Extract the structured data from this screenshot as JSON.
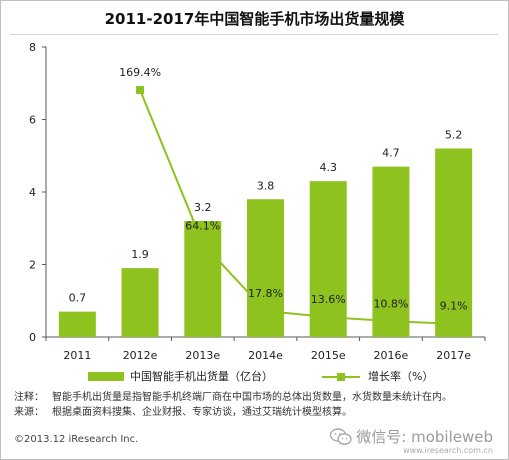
{
  "title": "2011-2017年中国智能手机市场出货量规模",
  "chart_data": {
    "type": "bar",
    "categories": [
      "2011",
      "2012e",
      "2013e",
      "2014e",
      "2015e",
      "2016e",
      "2017e"
    ],
    "series": [
      {
        "name": "中国智能手机出货量（亿台）",
        "type": "bar",
        "values": [
          0.7,
          1.9,
          3.2,
          3.8,
          4.3,
          4.7,
          5.2
        ],
        "labels": [
          "0.7",
          "1.9",
          "3.2",
          "3.8",
          "4.3",
          "4.7",
          "5.2"
        ],
        "color": "#8dc21f"
      },
      {
        "name": "增长率（%）",
        "type": "line",
        "values": [
          null,
          169.4,
          64.1,
          17.8,
          13.6,
          10.8,
          9.1
        ],
        "labels": [
          "",
          "169.4%",
          "64.1%",
          "17.8%",
          "13.6%",
          "10.8%",
          "9.1%"
        ],
        "color": "#8dc21f"
      }
    ],
    "ylim": [
      0,
      8
    ],
    "yticks": [
      "0",
      "2",
      "4",
      "6",
      "8"
    ],
    "grid": false,
    "legend": "bottom"
  },
  "legend": {
    "bar_label": "中国智能手机出货量（亿台）",
    "line_label": "增长率（%）"
  },
  "notes": {
    "note_label": "注释：",
    "note_text": "智能手机出货量是指智能手机终端厂商在中国市场的总体出货数量，水货数量未统计在内。",
    "source_label": "来源：",
    "source_text": "根据桌面资料搜集、企业财报、专家访谈，通过艾瑞统计模型核算。"
  },
  "copyright": "©2013.12 iResearch Inc.",
  "watermark": {
    "text": "微信号: mobileweb",
    "url": "www.iresearch.com.cn",
    "icon": "wechat-icon"
  }
}
